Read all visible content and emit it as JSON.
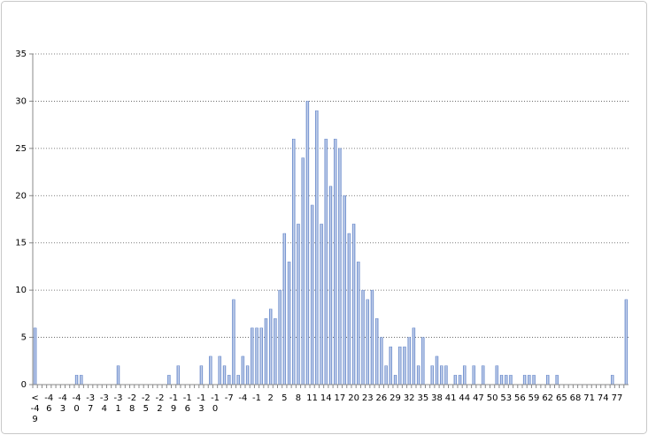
{
  "chart_data": {
    "type": "bar",
    "categories": [
      "< -49",
      null,
      null,
      -46,
      null,
      null,
      -43,
      null,
      null,
      -40,
      null,
      null,
      -37,
      null,
      null,
      -34,
      null,
      null,
      -31,
      null,
      null,
      -28,
      null,
      null,
      -25,
      null,
      null,
      -22,
      null,
      null,
      -19,
      null,
      null,
      -16,
      null,
      null,
      -13,
      null,
      null,
      -10,
      null,
      null,
      -7,
      null,
      null,
      -4,
      null,
      null,
      -1,
      null,
      null,
      2,
      null,
      null,
      5,
      null,
      null,
      8,
      null,
      null,
      11,
      null,
      null,
      14,
      null,
      null,
      17,
      null,
      null,
      20,
      null,
      null,
      23,
      null,
      null,
      26,
      null,
      null,
      29,
      null,
      null,
      32,
      null,
      null,
      35,
      null,
      null,
      38,
      null,
      null,
      41,
      null,
      null,
      44,
      null,
      null,
      47,
      null,
      null,
      50,
      null,
      null,
      53,
      null,
      null,
      56,
      null,
      null,
      59,
      null,
      null,
      62,
      null,
      null,
      65,
      null,
      null,
      68,
      null,
      null,
      71,
      null,
      null,
      74,
      null,
      null,
      77,
      null,
      null
    ],
    "values": [
      6,
      0,
      0,
      0,
      0,
      0,
      0,
      0,
      0,
      1,
      1,
      0,
      0,
      0,
      0,
      0,
      0,
      0,
      2,
      0,
      0,
      0,
      0,
      0,
      0,
      0,
      0,
      0,
      0,
      1,
      0,
      2,
      0,
      0,
      0,
      0,
      2,
      0,
      3,
      0,
      3,
      2,
      1,
      9,
      1,
      3,
      2,
      6,
      6,
      6,
      7,
      8,
      7,
      10,
      16,
      13,
      26,
      17,
      24,
      30,
      19,
      29,
      17,
      26,
      21,
      26,
      25,
      20,
      16,
      17,
      13,
      10,
      9,
      10,
      7,
      5,
      2,
      4,
      1,
      4,
      4,
      5,
      6,
      2,
      5,
      0,
      2,
      3,
      2,
      2,
      0,
      1,
      1,
      2,
      0,
      2,
      0,
      2,
      0,
      0,
      2,
      1,
      1,
      1,
      0,
      0,
      1,
      1,
      1,
      0,
      0,
      1,
      0,
      1,
      0,
      0,
      0,
      0,
      0,
      0,
      0,
      0,
      0,
      0,
      0,
      1,
      0,
      0,
      9
    ],
    "color": "#5b7fc6",
    "ylim": [
      0,
      35
    ],
    "yticks": [
      0,
      5,
      10,
      15,
      20,
      25,
      30,
      35
    ],
    "grid": true
  }
}
